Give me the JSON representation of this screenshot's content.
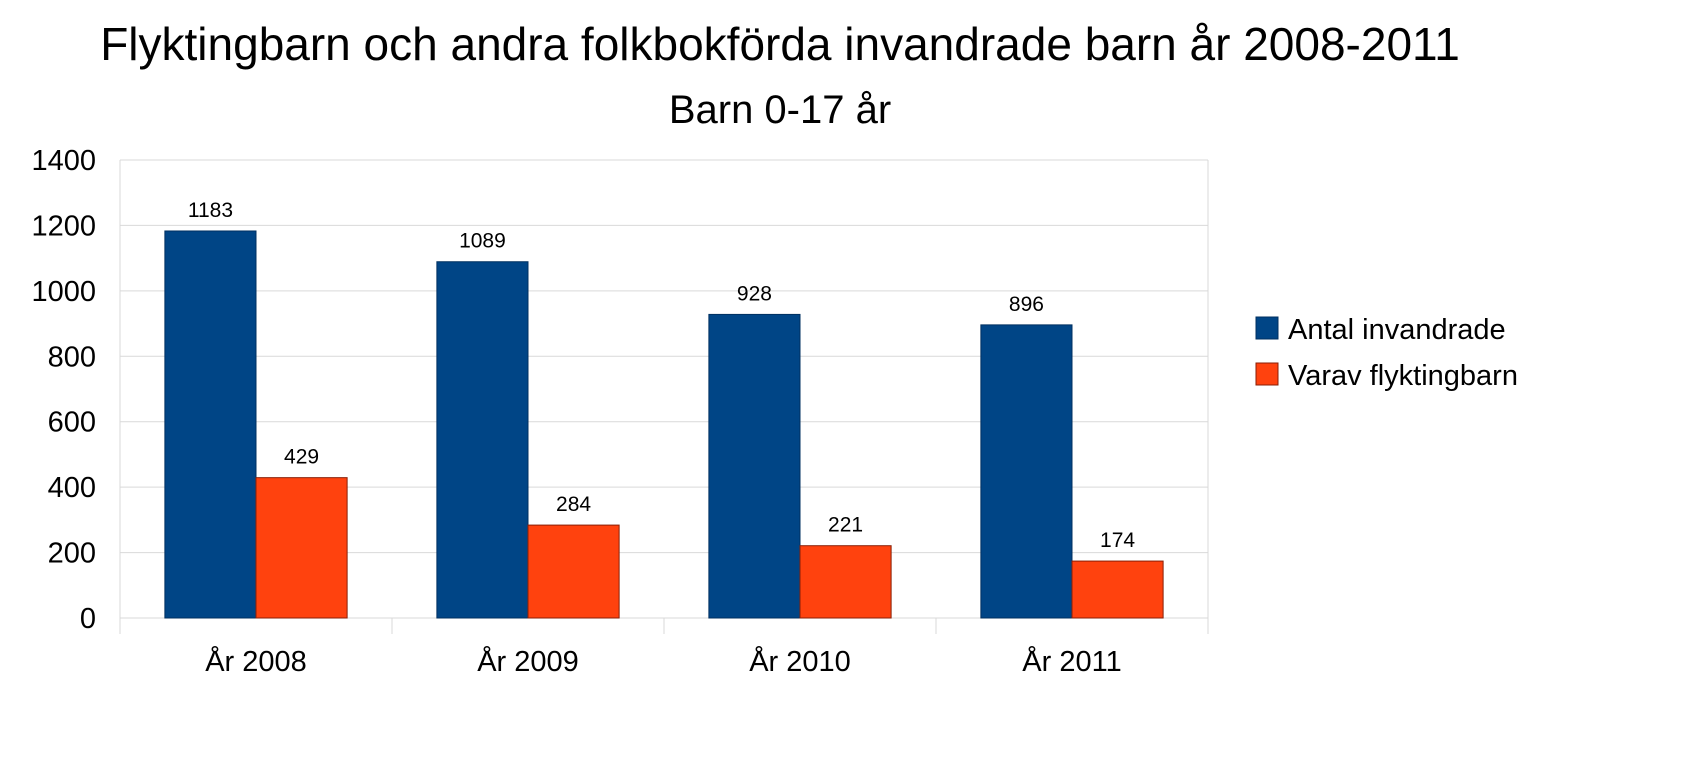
{
  "chart_data": {
    "type": "bar",
    "title": "Flyktingbarn och andra folkbokförda invandrade barn år 2008-2011",
    "subtitle": "Barn 0-17 år",
    "xlabel": "",
    "ylabel": "",
    "categories": [
      "År 2008",
      "År 2009",
      "År 2010",
      "År 2011"
    ],
    "series": [
      {
        "name": "Antal invandrade",
        "values": [
          1183,
          1089,
          928,
          896
        ],
        "color": "#004586"
      },
      {
        "name": "Varav flyktingbarn",
        "values": [
          429,
          284,
          221,
          174
        ],
        "color": "#ff420e"
      }
    ],
    "ylim": [
      0,
      1400
    ],
    "yticks": [
      0,
      200,
      400,
      600,
      800,
      1000,
      1200,
      1400
    ],
    "grid": true,
    "legend_position": "right",
    "data_labels": true
  }
}
